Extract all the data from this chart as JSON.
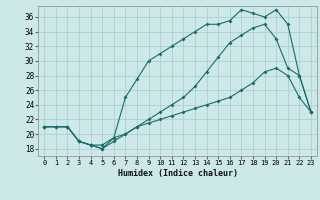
{
  "xlabel": "Humidex (Indice chaleur)",
  "bg_color": "#cce8e8",
  "grid_color": "#aacccc",
  "line_color": "#1a6b6b",
  "xlim": [
    -0.5,
    23.5
  ],
  "ylim": [
    17.0,
    37.5
  ],
  "yticks": [
    18,
    20,
    22,
    24,
    26,
    28,
    30,
    32,
    34,
    36
  ],
  "xticks": [
    0,
    1,
    2,
    3,
    4,
    5,
    6,
    7,
    8,
    9,
    10,
    11,
    12,
    13,
    14,
    15,
    16,
    17,
    18,
    19,
    20,
    21,
    22,
    23
  ],
  "line1_x": [
    0,
    1,
    2,
    3,
    4,
    5,
    6,
    7,
    8,
    9,
    10,
    11,
    12,
    13,
    14,
    15,
    16,
    17,
    18,
    19,
    20,
    21,
    22,
    23
  ],
  "line1_y": [
    21,
    21,
    21,
    19,
    18.5,
    18,
    19,
    20,
    21,
    21.5,
    22,
    22.5,
    23,
    23.5,
    24,
    24.5,
    25,
    26,
    27,
    28.5,
    29,
    28,
    25,
    23
  ],
  "line2_x": [
    0,
    1,
    2,
    3,
    4,
    5,
    6,
    7,
    8,
    9,
    10,
    11,
    12,
    13,
    14,
    15,
    16,
    17,
    18,
    19,
    20,
    21,
    22,
    23
  ],
  "line2_y": [
    21,
    21,
    21,
    19,
    18.5,
    18,
    19.5,
    25,
    27.5,
    30,
    31,
    32,
    33,
    34,
    35,
    35,
    35.5,
    37,
    36.5,
    36,
    37,
    35,
    28,
    23
  ],
  "line3_x": [
    0,
    2,
    3,
    4,
    5,
    6,
    7,
    8,
    9,
    10,
    11,
    12,
    13,
    14,
    15,
    16,
    17,
    18,
    19,
    20,
    21,
    22,
    23
  ],
  "line3_y": [
    21,
    21,
    19,
    18.5,
    18.5,
    19.5,
    20,
    21,
    22,
    23,
    24,
    25,
    26.5,
    28.5,
    30.5,
    32.5,
    33.5,
    34.5,
    35,
    33,
    29,
    28,
    23
  ]
}
